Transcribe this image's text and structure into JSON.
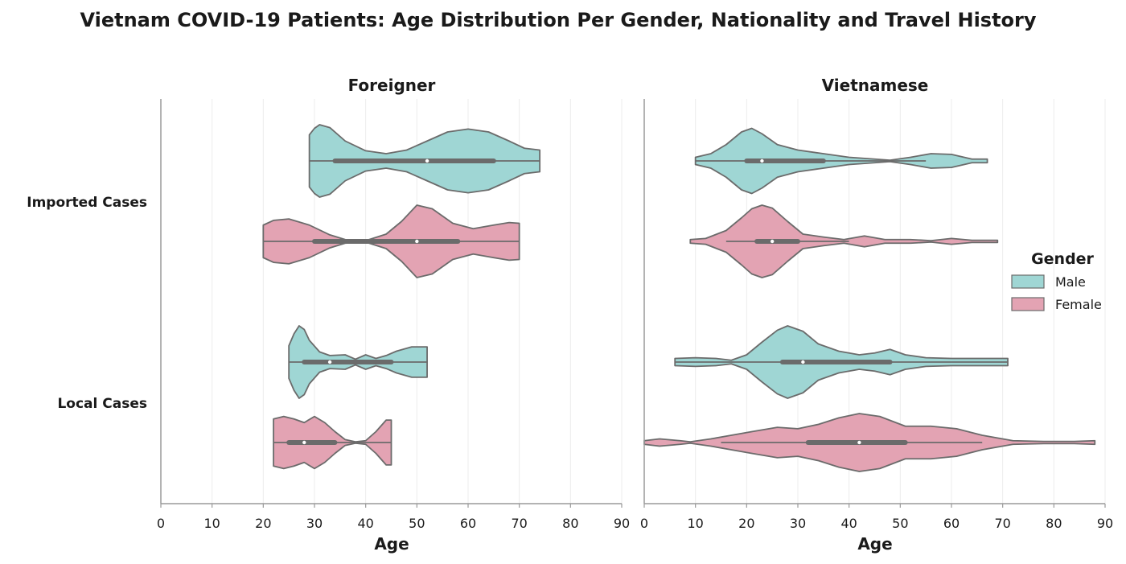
{
  "chart_data": {
    "type": "violin",
    "title": "Vietnam COVID-19 Patients: Age Distribution Per Gender, Nationality and Travel History",
    "xlabel": "Age",
    "xlim": [
      0,
      90
    ],
    "x_ticks": [
      0,
      10,
      20,
      30,
      40,
      50,
      60,
      70,
      80,
      90
    ],
    "row_categories": [
      "Imported Cases",
      "Local Cases"
    ],
    "grid": "vertical",
    "legend": {
      "title": "Gender",
      "position": "right",
      "entries": [
        {
          "name": "Male",
          "color": "#9fd6d4"
        },
        {
          "name": "Female",
          "color": "#e3a3b3"
        }
      ]
    },
    "colors": {
      "Male": "#9fd6d4",
      "Female": "#e3a3b3",
      "outline": "#6b6b6b"
    },
    "panels": [
      {
        "title": "Foreigner",
        "violins": [
          {
            "row": "Imported Cases",
            "gender": "Male",
            "min": 29,
            "max": 74,
            "q1": 34,
            "median": 52,
            "q3": 65,
            "whisker_low": 29,
            "whisker_high": 74,
            "density": [
              [
                29,
                0.72
              ],
              [
                30,
                0.9
              ],
              [
                31,
                1.0
              ],
              [
                33,
                0.92
              ],
              [
                36,
                0.55
              ],
              [
                40,
                0.28
              ],
              [
                44,
                0.2
              ],
              [
                48,
                0.3
              ],
              [
                52,
                0.55
              ],
              [
                56,
                0.8
              ],
              [
                60,
                0.88
              ],
              [
                64,
                0.8
              ],
              [
                68,
                0.55
              ],
              [
                71,
                0.35
              ],
              [
                74,
                0.3
              ]
            ]
          },
          {
            "row": "Imported Cases",
            "gender": "Female",
            "min": 20,
            "max": 70,
            "q1": 30,
            "median": 50,
            "q3": 58,
            "whisker_low": 20,
            "whisker_high": 70,
            "density": [
              [
                20,
                0.45
              ],
              [
                22,
                0.58
              ],
              [
                25,
                0.62
              ],
              [
                29,
                0.45
              ],
              [
                33,
                0.18
              ],
              [
                36,
                0.05
              ],
              [
                40,
                0.02
              ],
              [
                44,
                0.2
              ],
              [
                47,
                0.55
              ],
              [
                50,
                1.0
              ],
              [
                53,
                0.9
              ],
              [
                57,
                0.5
              ],
              [
                61,
                0.35
              ],
              [
                65,
                0.45
              ],
              [
                68,
                0.52
              ],
              [
                70,
                0.5
              ]
            ]
          },
          {
            "row": "Local Cases",
            "gender": "Male",
            "min": 25,
            "max": 52,
            "q1": 28,
            "median": 33,
            "q3": 45,
            "whisker_low": 25,
            "whisker_high": 52,
            "density": [
              [
                25,
                0.45
              ],
              [
                26,
                0.78
              ],
              [
                27,
                1.0
              ],
              [
                28,
                0.9
              ],
              [
                29,
                0.6
              ],
              [
                31,
                0.28
              ],
              [
                33,
                0.18
              ],
              [
                36,
                0.2
              ],
              [
                38,
                0.08
              ],
              [
                40,
                0.2
              ],
              [
                42,
                0.1
              ],
              [
                44,
                0.18
              ],
              [
                46,
                0.3
              ],
              [
                49,
                0.42
              ],
              [
                52,
                0.42
              ]
            ]
          },
          {
            "row": "Local Cases",
            "gender": "Female",
            "min": 22,
            "max": 45,
            "q1": 25,
            "median": 28,
            "q3": 34,
            "whisker_low": 22,
            "whisker_high": 45,
            "density": [
              [
                22,
                0.65
              ],
              [
                24,
                0.72
              ],
              [
                26,
                0.65
              ],
              [
                28,
                0.55
              ],
              [
                30,
                0.72
              ],
              [
                32,
                0.55
              ],
              [
                34,
                0.3
              ],
              [
                36,
                0.08
              ],
              [
                38,
                0.02
              ],
              [
                40,
                0.05
              ],
              [
                42,
                0.3
              ],
              [
                44,
                0.62
              ],
              [
                45,
                0.62
              ]
            ]
          }
        ]
      },
      {
        "title": "Vietnamese",
        "violins": [
          {
            "row": "Imported Cases",
            "gender": "Male",
            "min": 10,
            "max": 67,
            "q1": 20,
            "median": 23,
            "q3": 35,
            "whisker_low": 10,
            "whisker_high": 55,
            "density": [
              [
                10,
                0.1
              ],
              [
                13,
                0.2
              ],
              [
                16,
                0.45
              ],
              [
                19,
                0.8
              ],
              [
                21,
                0.9
              ],
              [
                23,
                0.75
              ],
              [
                26,
                0.45
              ],
              [
                30,
                0.3
              ],
              [
                35,
                0.2
              ],
              [
                40,
                0.1
              ],
              [
                45,
                0.05
              ],
              [
                48,
                0.02
              ],
              [
                52,
                0.1
              ],
              [
                56,
                0.2
              ],
              [
                60,
                0.18
              ],
              [
                64,
                0.05
              ],
              [
                67,
                0.05
              ]
            ]
          },
          {
            "row": "Imported Cases",
            "gender": "Female",
            "min": 9,
            "max": 69,
            "q1": 22,
            "median": 25,
            "q3": 30,
            "whisker_low": 16,
            "whisker_high": 40,
            "density": [
              [
                9,
                0.05
              ],
              [
                12,
                0.08
              ],
              [
                16,
                0.3
              ],
              [
                19,
                0.65
              ],
              [
                21,
                0.9
              ],
              [
                23,
                1.0
              ],
              [
                25,
                0.92
              ],
              [
                28,
                0.55
              ],
              [
                31,
                0.2
              ],
              [
                35,
                0.12
              ],
              [
                39,
                0.05
              ],
              [
                43,
                0.15
              ],
              [
                47,
                0.05
              ],
              [
                52,
                0.05
              ],
              [
                56,
                0.02
              ],
              [
                60,
                0.08
              ],
              [
                64,
                0.03
              ],
              [
                69,
                0.03
              ]
            ]
          },
          {
            "row": "Local Cases",
            "gender": "Male",
            "min": 6,
            "max": 71,
            "q1": 27,
            "median": 31,
            "q3": 48,
            "whisker_low": 6,
            "whisker_high": 71,
            "density": [
              [
                6,
                0.1
              ],
              [
                10,
                0.12
              ],
              [
                14,
                0.1
              ],
              [
                17,
                0.05
              ],
              [
                20,
                0.2
              ],
              [
                23,
                0.55
              ],
              [
                26,
                0.88
              ],
              [
                28,
                1.0
              ],
              [
                31,
                0.85
              ],
              [
                34,
                0.5
              ],
              [
                38,
                0.3
              ],
              [
                42,
                0.2
              ],
              [
                45,
                0.25
              ],
              [
                48,
                0.35
              ],
              [
                51,
                0.2
              ],
              [
                55,
                0.12
              ],
              [
                60,
                0.1
              ],
              [
                65,
                0.1
              ],
              [
                71,
                0.1
              ]
            ]
          },
          {
            "row": "Local Cases",
            "gender": "Female",
            "min": 0,
            "max": 88,
            "q1": 32,
            "median": 42,
            "q3": 51,
            "whisker_low": 15,
            "whisker_high": 66,
            "density": [
              [
                0,
                0.05
              ],
              [
                3,
                0.1
              ],
              [
                7,
                0.05
              ],
              [
                9,
                0.02
              ],
              [
                13,
                0.1
              ],
              [
                17,
                0.2
              ],
              [
                21,
                0.3
              ],
              [
                26,
                0.42
              ],
              [
                30,
                0.38
              ],
              [
                34,
                0.5
              ],
              [
                38,
                0.68
              ],
              [
                42,
                0.8
              ],
              [
                46,
                0.72
              ],
              [
                51,
                0.45
              ],
              [
                56,
                0.45
              ],
              [
                61,
                0.38
              ],
              [
                66,
                0.2
              ],
              [
                72,
                0.05
              ],
              [
                78,
                0.03
              ],
              [
                84,
                0.03
              ],
              [
                88,
                0.05
              ]
            ]
          }
        ]
      }
    ]
  }
}
